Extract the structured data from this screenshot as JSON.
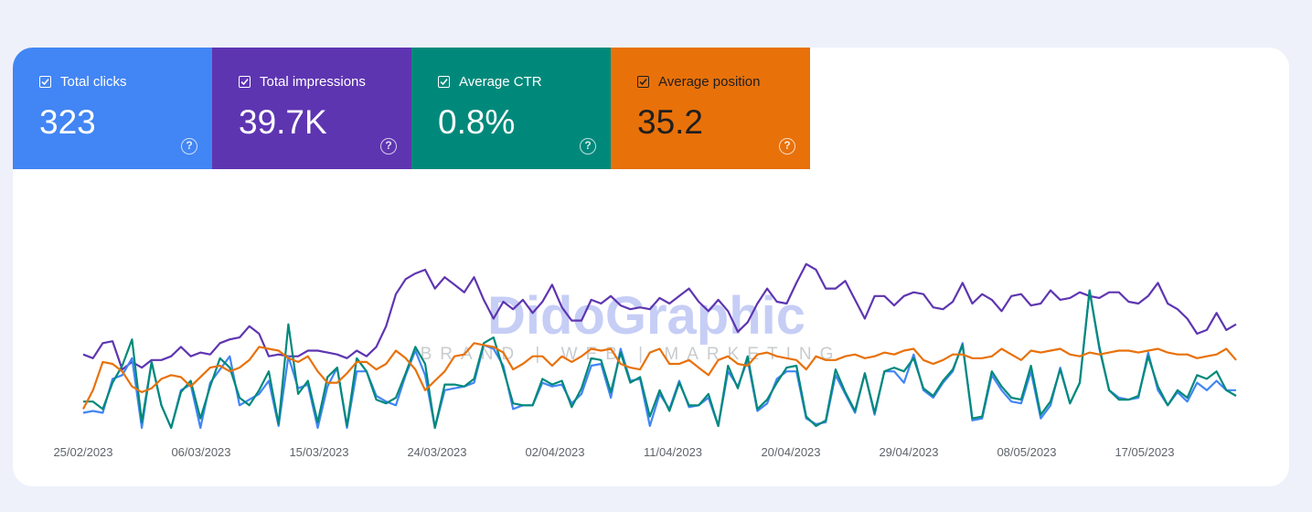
{
  "metrics": [
    {
      "key": "clicks",
      "label": "Total clicks",
      "value": "323",
      "checked": true
    },
    {
      "key": "impressions",
      "label": "Total impressions",
      "value": "39.7K",
      "checked": true
    },
    {
      "key": "ctr",
      "label": "Average CTR",
      "value": "0.8%",
      "checked": true
    },
    {
      "key": "position",
      "label": "Average position",
      "value": "35.2",
      "checked": true
    }
  ],
  "watermark": {
    "title": "DidoGraphic",
    "subtitle": "BRAND | WEB | MARKETING"
  },
  "colors": {
    "clicks": "#4285f4",
    "impressions": "#5e35b1",
    "ctr": "#00897b",
    "position": "#e8710a",
    "background": "#eef1fa",
    "card": "#ffffff"
  },
  "icons": {
    "checkbox": "checkbox-checked-icon",
    "help": "help-circle-icon"
  },
  "chart_data": {
    "type": "line",
    "title": "",
    "xlabel": "",
    "ylabel": "",
    "grid": false,
    "legend": "none",
    "axes_visible": false,
    "x_tick_labels": [
      "25/02/2023",
      "06/03/2023",
      "15/03/2023",
      "24/03/2023",
      "02/04/2023",
      "11/04/2023",
      "20/04/2023",
      "29/04/2023",
      "08/05/2023",
      "17/05/2023"
    ],
    "x_start": "2023-02-24",
    "x_end": "2023-05-26",
    "value_scale": "relative, 0 = bottom of plot, 100 = top of plot (no y-axis shown)",
    "series": [
      {
        "name": "Total impressions",
        "color": "#5e35b1",
        "values": [
          39,
          37,
          45,
          46,
          31,
          35,
          32,
          36,
          36,
          38,
          43,
          38,
          40,
          39,
          45,
          47,
          48,
          54,
          50,
          38,
          39,
          38,
          38,
          41,
          41,
          40,
          39,
          37,
          41,
          38,
          43,
          54,
          71,
          79,
          82,
          84,
          74,
          80,
          76,
          72,
          80,
          68,
          58,
          67,
          63,
          68,
          61,
          67,
          76,
          64,
          57,
          57,
          68,
          66,
          70,
          65,
          63,
          64,
          63,
          69,
          66,
          70,
          74,
          67,
          62,
          68,
          62,
          51,
          56,
          66,
          74,
          67,
          66,
          77,
          87,
          84,
          74,
          74,
          78,
          68,
          58,
          70,
          70,
          65,
          70,
          72,
          71,
          64,
          63,
          67,
          77,
          66,
          71,
          68,
          62,
          70,
          71,
          65,
          66,
          73,
          68,
          69,
          72,
          70,
          69,
          72,
          72,
          67,
          66,
          70,
          77,
          66,
          63,
          58,
          50,
          52,
          61,
          52,
          55
        ]
      },
      {
        "name": "Total clicks",
        "color": "#4285f4",
        "values": [
          8,
          9,
          8,
          26,
          28,
          37,
          0,
          35,
          12,
          0,
          20,
          23,
          0,
          24,
          31,
          38,
          12,
          15,
          18,
          25,
          1,
          38,
          21,
          23,
          0,
          22,
          32,
          0,
          30,
          30,
          17,
          14,
          12,
          28,
          41,
          28,
          0,
          20,
          21,
          22,
          24,
          44,
          42,
          33,
          10,
          12,
          12,
          24,
          22,
          23,
          13,
          18,
          33,
          34,
          16,
          42,
          25,
          26,
          1,
          18,
          10,
          25,
          11,
          12,
          16,
          1,
          30,
          22,
          36,
          9,
          13,
          26,
          30,
          30,
          5,
          2,
          3,
          28,
          18,
          8,
          29,
          7,
          30,
          30,
          24,
          39,
          20,
          16,
          24,
          30,
          45,
          4,
          5,
          28,
          20,
          14,
          13,
          30,
          5,
          12,
          32,
          13,
          24,
          73,
          42,
          20,
          16,
          15,
          16,
          40,
          20,
          12,
          19,
          14,
          24,
          20,
          25,
          20,
          20
        ]
      },
      {
        "name": "Average CTR",
        "color": "#00897b",
        "values": [
          14,
          14,
          10,
          24,
          33,
          47,
          3,
          35,
          12,
          0,
          19,
          25,
          5,
          22,
          37,
          32,
          16,
          12,
          20,
          30,
          2,
          55,
          18,
          25,
          3,
          27,
          32,
          1,
          37,
          30,
          15,
          13,
          16,
          29,
          43,
          34,
          0,
          23,
          23,
          22,
          26,
          45,
          48,
          31,
          13,
          12,
          12,
          26,
          23,
          25,
          11,
          21,
          37,
          36,
          19,
          40,
          24,
          27,
          6,
          20,
          9,
          24,
          12,
          12,
          18,
          1,
          33,
          21,
          38,
          10,
          15,
          24,
          32,
          33,
          6,
          1,
          4,
          31,
          19,
          9,
          29,
          8,
          30,
          32,
          30,
          37,
          21,
          17,
          25,
          31,
          44,
          5,
          6,
          30,
          22,
          16,
          15,
          33,
          7,
          14,
          31,
          13,
          24,
          73,
          43,
          20,
          15,
          15,
          17,
          38,
          22,
          12,
          20,
          16,
          28,
          26,
          30,
          20,
          17
        ]
      },
      {
        "name": "Average position",
        "color": "#e8710a",
        "values": [
          10,
          20,
          35,
          34,
          30,
          22,
          19,
          21,
          26,
          28,
          27,
          22,
          27,
          32,
          33,
          30,
          32,
          36,
          43,
          42,
          41,
          37,
          35,
          38,
          30,
          24,
          24,
          29,
          35,
          35,
          31,
          34,
          41,
          37,
          31,
          20,
          25,
          30,
          38,
          39,
          45,
          44,
          43,
          40,
          31,
          34,
          38,
          38,
          33,
          38,
          35,
          38,
          42,
          41,
          42,
          34,
          32,
          31,
          40,
          42,
          34,
          34,
          36,
          32,
          28,
          36,
          38,
          34,
          33,
          39,
          40,
          38,
          37,
          36,
          31,
          38,
          36,
          36,
          38,
          39,
          37,
          38,
          40,
          39,
          41,
          42,
          36,
          34,
          36,
          39,
          39,
          37,
          37,
          38,
          42,
          39,
          36,
          41,
          40,
          41,
          42,
          39,
          38,
          40,
          39,
          40,
          41,
          41,
          40,
          41,
          42,
          40,
          39,
          39,
          37,
          38,
          39,
          42,
          36
        ]
      }
    ]
  }
}
